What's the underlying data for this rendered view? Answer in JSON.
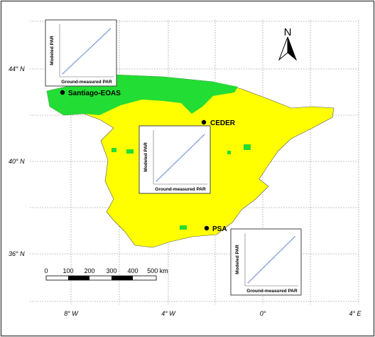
{
  "lat_labels": [
    "44° N",
    "40° N",
    "36° N"
  ],
  "lon_labels": [
    "8° W",
    "4° W",
    "0°",
    "4° E"
  ],
  "stations": [
    {
      "label": "Santiago-EOAS"
    },
    {
      "label": "CEDER"
    },
    {
      "label": "PSA"
    }
  ],
  "insets": [
    {
      "y_label": "Modeled PAR",
      "x_label": "Ground-measured PAR"
    },
    {
      "y_label": "Modeled PAR",
      "x_label": "Ground-measured PAR"
    },
    {
      "y_label": "Modeled PAR",
      "x_label": "Ground-measured PAR"
    }
  ],
  "scale_bar": [
    "0",
    "100",
    "200",
    "300",
    "400",
    "500 km"
  ],
  "north": "N"
}
